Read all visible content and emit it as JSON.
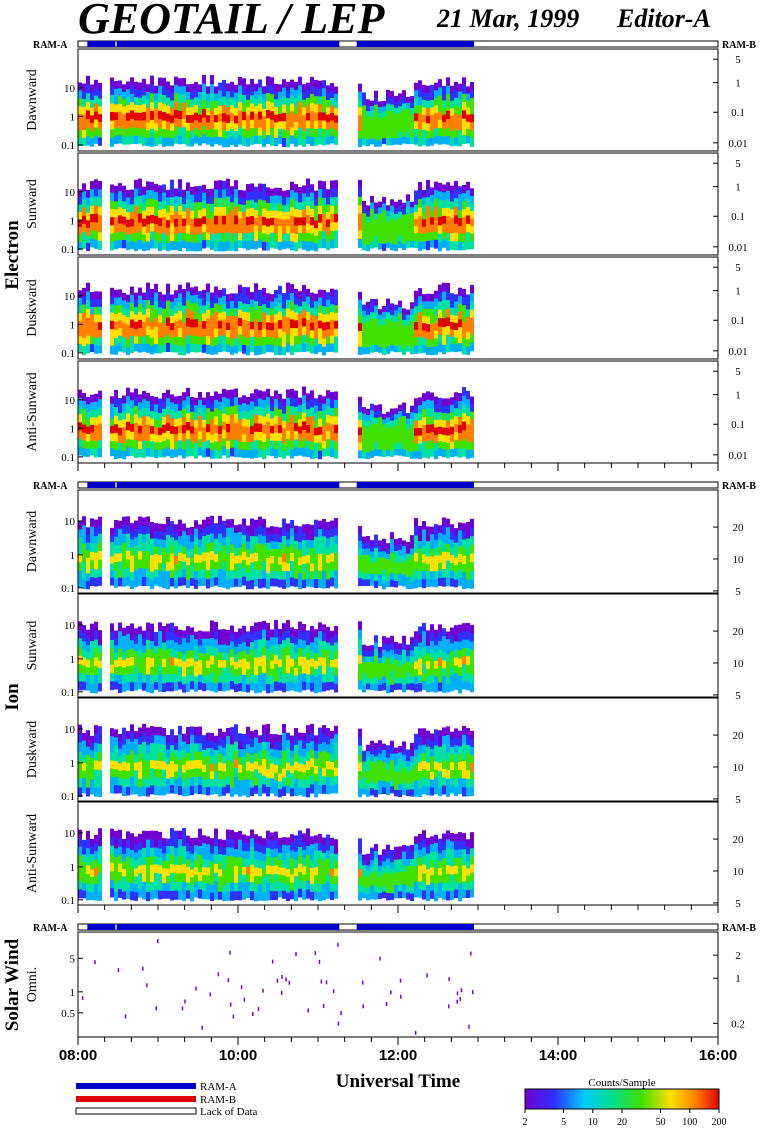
{
  "header": {
    "title": "GEOTAIL / LEP",
    "date": "21 Mar, 1999",
    "editor": "Editor-A"
  },
  "chart_data": {
    "type": "heatmap",
    "xlabel": "Universal Time",
    "x_ticks": [
      "08:00",
      "10:00",
      "12:00",
      "14:00",
      "16:00"
    ],
    "x_range": [
      "08:00",
      "16:00"
    ],
    "data_coverage": {
      "start": "08:00",
      "end": "12:57"
    },
    "gaps": [
      {
        "start": "08:18",
        "end": "08:22"
      },
      {
        "start": "11:17",
        "end": "11:28"
      }
    ],
    "ram_bar": {
      "left_label": "RAM-A",
      "right_label": "RAM-B",
      "segments": [
        {
          "start": "08:07",
          "end": "08:28",
          "mode": "RAM-A"
        },
        {
          "start": "08:29",
          "end": "11:16",
          "mode": "RAM-A"
        },
        {
          "start": "11:29",
          "end": "12:57",
          "mode": "RAM-A"
        }
      ]
    },
    "groups": [
      {
        "label": "Electron",
        "left_ticks": [
          "10",
          "1",
          "0.1"
        ],
        "right_ticks": [
          "5",
          "1",
          "0.1",
          "0.01"
        ],
        "panels": [
          {
            "name": "Dawnward"
          },
          {
            "name": "Sunward"
          },
          {
            "name": "Duskward"
          },
          {
            "name": "Anti-Sunward"
          }
        ]
      },
      {
        "label": "Ion",
        "left_ticks": [
          "10",
          "1",
          "0.1"
        ],
        "right_ticks": [
          "20",
          "10",
          "5"
        ],
        "panels": [
          {
            "name": "Dawnward"
          },
          {
            "name": "Sunward"
          },
          {
            "name": "Duskward"
          },
          {
            "name": "Anti-Sunward"
          }
        ]
      },
      {
        "label": "Solar Wind",
        "left_ticks": [
          "5",
          "1",
          "0.5"
        ],
        "right_ticks": [
          "2",
          "1",
          "0.2"
        ],
        "panels": [
          {
            "name": "Omni."
          }
        ]
      }
    ],
    "legend": [
      {
        "label": "RAM-A",
        "color": "#0000cc"
      },
      {
        "label": "RAM-B",
        "color": "#dd0000"
      },
      {
        "label": "Lack of Data",
        "color": "#ffffff"
      }
    ],
    "colorbar": {
      "title": "Counts/Sample",
      "ticks": [
        "2",
        "5",
        "10",
        "20",
        "50",
        "100",
        "200"
      ],
      "scale": "log",
      "range": [
        2,
        200
      ]
    }
  }
}
